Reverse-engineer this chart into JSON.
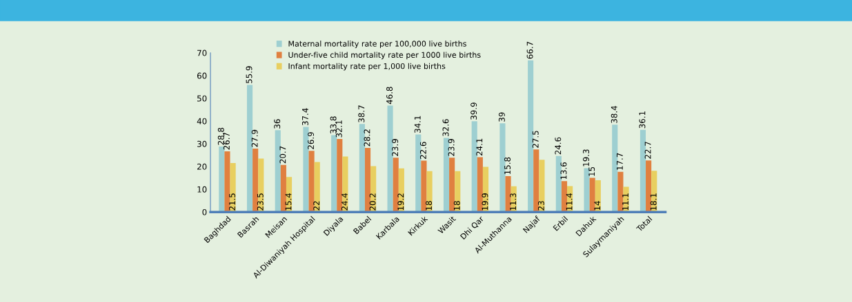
{
  "chart_data": {
    "type": "bar",
    "categories": [
      "Baghdad",
      "Basrah",
      "Meisan",
      "Al-Diwaniyah Hospital",
      "Diyala",
      "Babel",
      "Karbala",
      "Kirkuk",
      "Wasit",
      "Dhi Qar",
      "Al-Muthanna",
      "Najaf",
      "Erbil",
      "Dahuk",
      "Sulaymaniyah",
      "Total"
    ],
    "series": [
      {
        "name": "Maternal mortality rate per 100,000 live births",
        "color": "#9ecfd1",
        "values": [
          28.8,
          55.9,
          36,
          37.4,
          33.8,
          38.7,
          46.8,
          34.1,
          32.6,
          39.9,
          39,
          66.7,
          24.6,
          19.3,
          38.4,
          36.1
        ]
      },
      {
        "name": "Under-five child mortality rate per 1000 live births",
        "color": "#e08040",
        "values": [
          26.7,
          27.9,
          20.7,
          26.9,
          32.1,
          28.2,
          23.9,
          22.6,
          23.9,
          24.1,
          15.8,
          27.5,
          13.6,
          15,
          17.7,
          22.7
        ]
      },
      {
        "name": "Infant mortality rate per 1,000 live births",
        "color": "#e8cf60",
        "values": [
          21.5,
          23.5,
          15.4,
          22,
          24.4,
          20.2,
          19.2,
          18,
          18,
          19.9,
          11.3,
          23,
          11.4,
          14,
          11.1,
          18.1
        ]
      }
    ],
    "ylim": [
      0,
      70
    ],
    "yticks": [
      0,
      10,
      20,
      30,
      40,
      50,
      60,
      70
    ],
    "data_labels": true,
    "grid": false,
    "legend": "top left"
  }
}
